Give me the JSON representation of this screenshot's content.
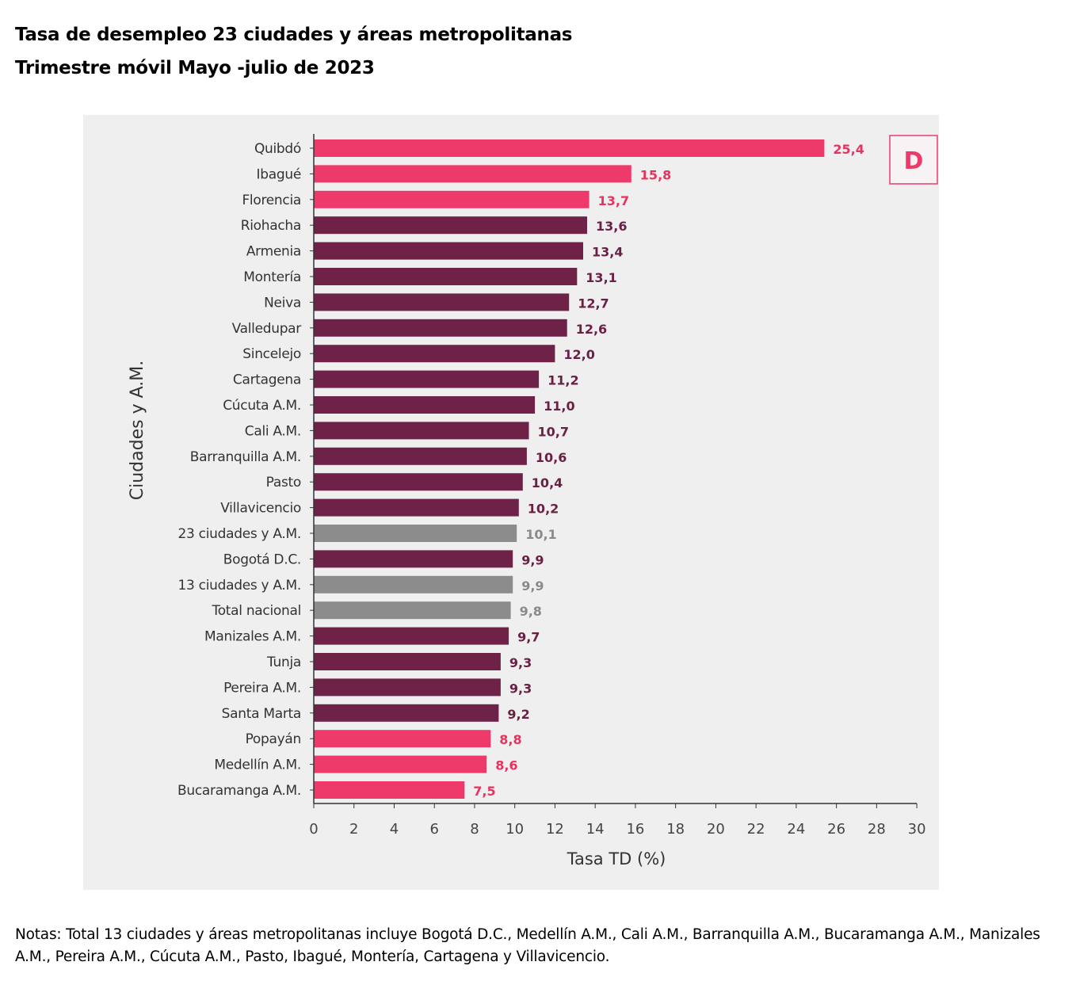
{
  "title_line1": "Tasa de desempleo 23 ciudades y áreas metropolitanas",
  "title_line2": "Trimestre móvil Mayo -julio de 2023",
  "notes": "Notas: Total 13 ciudades y áreas metropolitanas incluye Bogotá D.C., Medellín A.M., Cali A.M., Barranquilla A.M., Bucaramanga A.M., Manizales A.M., Pereira A.M., Cúcuta A.M., Pasto, Ibagué, Montería, Cartagena y Villavicencio.",
  "colors": {
    "pink": "#ee3a6b",
    "maroon": "#6e2248",
    "gray": "#8c8c8c",
    "panel_bg": "#efefef"
  },
  "chart_data": {
    "type": "bar",
    "orientation": "horizontal",
    "xlabel": "Tasa TD (%)",
    "ylabel": "Ciudades y A.M.",
    "xlim": [
      0,
      30
    ],
    "xticks": [
      0,
      2,
      4,
      6,
      8,
      10,
      12,
      14,
      16,
      18,
      20,
      22,
      24,
      26,
      28,
      30
    ],
    "logo_text": "D",
    "categories": [
      "Quibdó",
      "Ibagué",
      "Florencia",
      "Riohacha",
      "Armenia",
      "Montería",
      "Neiva",
      "Valledupar",
      "Sincelejo",
      "Cartagena",
      "Cúcuta A.M.",
      "Cali A.M.",
      "Barranquilla A.M.",
      "Pasto",
      "Villavicencio",
      "23 ciudades y A.M.",
      "Bogotá D.C.",
      "13 ciudades y A.M.",
      "Total nacional",
      "Manizales A.M.",
      "Tunja",
      "Pereira A.M.",
      "Santa Marta",
      "Popayán",
      "Medellín A.M.",
      "Bucaramanga A.M."
    ],
    "values": [
      25.4,
      15.8,
      13.7,
      13.6,
      13.4,
      13.1,
      12.7,
      12.6,
      12.0,
      11.2,
      11.0,
      10.7,
      10.6,
      10.4,
      10.2,
      10.1,
      9.9,
      9.9,
      9.8,
      9.7,
      9.3,
      9.3,
      9.2,
      8.8,
      8.6,
      7.5
    ],
    "value_labels": [
      "25,4",
      "15,8",
      "13,7",
      "13,6",
      "13,4",
      "13,1",
      "12,7",
      "12,6",
      "12,0",
      "11,2",
      "11,0",
      "10,7",
      "10,6",
      "10,4",
      "10,2",
      "10,1",
      "9,9",
      "9,9",
      "9,8",
      "9,7",
      "9,3",
      "9,3",
      "9,2",
      "8,8",
      "8,6",
      "7,5"
    ],
    "groups": [
      "pink",
      "pink",
      "pink",
      "maroon",
      "maroon",
      "maroon",
      "maroon",
      "maroon",
      "maroon",
      "maroon",
      "maroon",
      "maroon",
      "maroon",
      "maroon",
      "maroon",
      "gray",
      "maroon",
      "gray",
      "gray",
      "maroon",
      "maroon",
      "maroon",
      "maroon",
      "pink",
      "pink",
      "pink"
    ]
  }
}
